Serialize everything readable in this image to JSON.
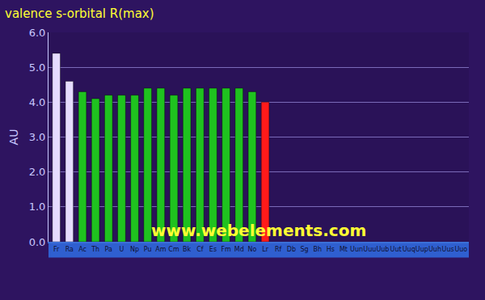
{
  "chart_data": {
    "type": "bar",
    "title": "valence s-orbital R(max)",
    "y_label": "AU",
    "categories": [
      "Fr",
      "Ra",
      "Ac",
      "Th",
      "Pa",
      "U",
      "Np",
      "Pu",
      "Am",
      "Cm",
      "Bk",
      "Cf",
      "Es",
      "Fm",
      "Md",
      "No",
      "Lr",
      "Rf",
      "Db",
      "Sg",
      "Bh",
      "Hs",
      "Mt",
      "Uun",
      "Uuu",
      "Uub",
      "Uut",
      "Uuq",
      "Uup",
      "Uuh",
      "Uus",
      "Uuo"
    ],
    "values": [
      5.4,
      4.6,
      4.3,
      4.1,
      4.2,
      4.2,
      4.2,
      4.4,
      4.4,
      4.2,
      4.4,
      4.4,
      4.4,
      4.4,
      4.4,
      4.3,
      4.0,
      null,
      null,
      null,
      null,
      null,
      null,
      null,
      null,
      null,
      null,
      null,
      null,
      null,
      null,
      null
    ],
    "colors": [
      "#e6dcff",
      "#e6dcff",
      "#1fc21f",
      "#1fc21f",
      "#1fc21f",
      "#1fc21f",
      "#1fc21f",
      "#1fc21f",
      "#1fc21f",
      "#1fc21f",
      "#1fc21f",
      "#1fc21f",
      "#1fc21f",
      "#1fc21f",
      "#1fc21f",
      "#1fc21f",
      "#ff1a1a",
      "#d81b1b",
      "#d81b1b",
      "#d81b1b",
      "#d81b1b",
      "#d81b1b",
      "#d81b1b",
      "#d81b1b",
      "#d81b1b",
      "#f0d040",
      "#555566",
      "#555566",
      "#555566",
      "#555566",
      "#555566",
      "#555566"
    ],
    "ylim": [
      0,
      6
    ],
    "yticks": [
      {
        "value": 0,
        "label": "0.0"
      },
      {
        "value": 1,
        "label": "1.0"
      },
      {
        "value": 2,
        "label": "2.0"
      },
      {
        "value": 3,
        "label": "3.0"
      },
      {
        "value": 4,
        "label": "4.0"
      },
      {
        "value": 5,
        "label": "5.0"
      },
      {
        "value": 6,
        "label": "6.0"
      }
    ],
    "grid": true,
    "annotations": [
      "www.webelements.com"
    ]
  }
}
